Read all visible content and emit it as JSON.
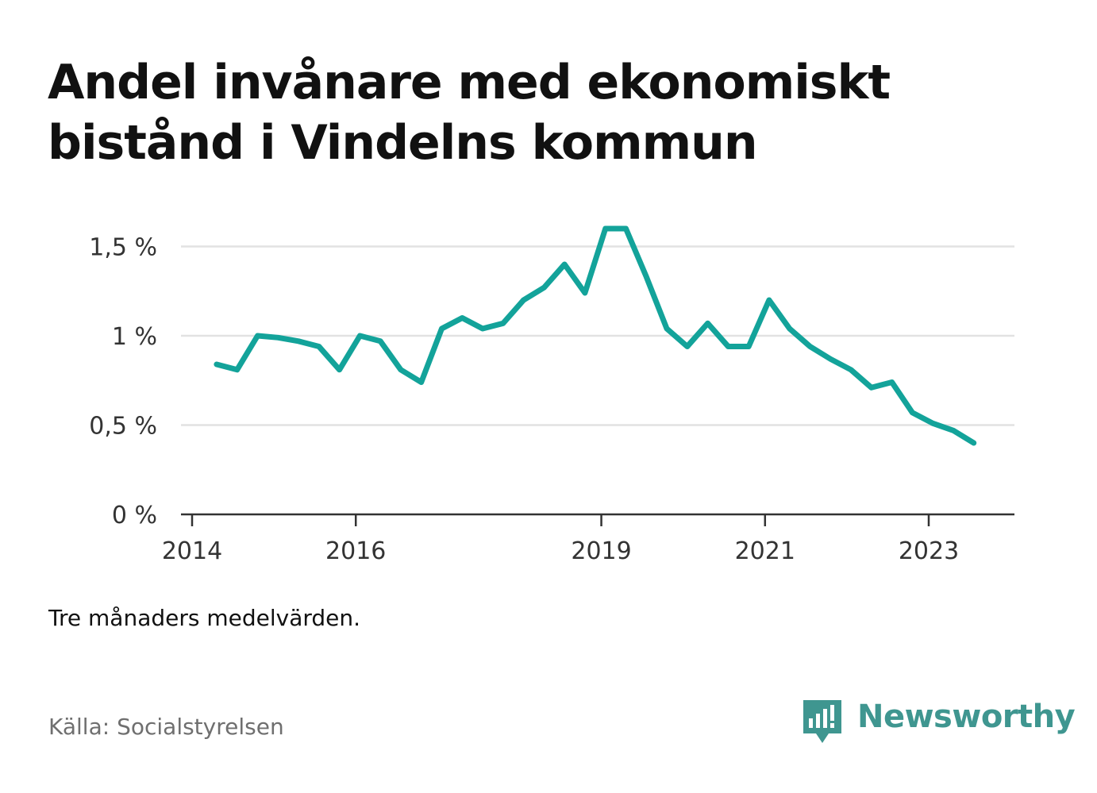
{
  "title": "Andel invånare med ekonomiskt bistånd i Vindelns kommun",
  "note": "Tre månaders medelvärden.",
  "source": "Källa: Socialstyrelsen",
  "brand": {
    "name": "Newsworthy",
    "color": "#3f9690",
    "icon": "newsworthy-logo-icon"
  },
  "chart_data": {
    "type": "line",
    "line_color": "#13a39a",
    "grid": true,
    "ylim": [
      0,
      1.6
    ],
    "yticks": [
      {
        "value": 0,
        "label": "0 %"
      },
      {
        "value": 0.5,
        "label": "0,5 %"
      },
      {
        "value": 1,
        "label": "1 %"
      },
      {
        "value": 1.5,
        "label": "1,5 %"
      }
    ],
    "xlim": [
      2014,
      2024
    ],
    "xticks": [
      {
        "value": 2014,
        "label": "2014"
      },
      {
        "value": 2016,
        "label": "2016"
      },
      {
        "value": 2019,
        "label": "2019"
      },
      {
        "value": 2021,
        "label": "2021"
      },
      {
        "value": 2023,
        "label": "2023"
      }
    ],
    "series": [
      {
        "x": [
          2014.3,
          2014.55,
          2014.8,
          2015.05,
          2015.3,
          2015.55,
          2015.8,
          2016.05,
          2016.3,
          2016.55,
          2016.8,
          2017.05,
          2017.3,
          2017.55,
          2017.8,
          2018.05,
          2018.3,
          2018.55,
          2018.8,
          2019.05,
          2019.3,
          2019.55,
          2019.8,
          2020.05,
          2020.3,
          2020.55,
          2020.8,
          2021.05,
          2021.3,
          2021.55,
          2021.8,
          2022.05,
          2022.3,
          2022.55,
          2022.8,
          2023.05,
          2023.3,
          2023.55
        ],
        "values": [
          0.84,
          0.81,
          1.0,
          0.99,
          0.97,
          0.94,
          0.81,
          1.0,
          0.97,
          0.81,
          0.74,
          1.04,
          1.1,
          1.04,
          1.07,
          1.2,
          1.27,
          1.4,
          1.24,
          1.6,
          1.6,
          1.33,
          1.04,
          0.94,
          1.07,
          0.94,
          0.94,
          1.2,
          1.04,
          0.94,
          0.87,
          0.81,
          0.71,
          0.74,
          0.57,
          0.51,
          0.47,
          0.4
        ]
      }
    ]
  }
}
